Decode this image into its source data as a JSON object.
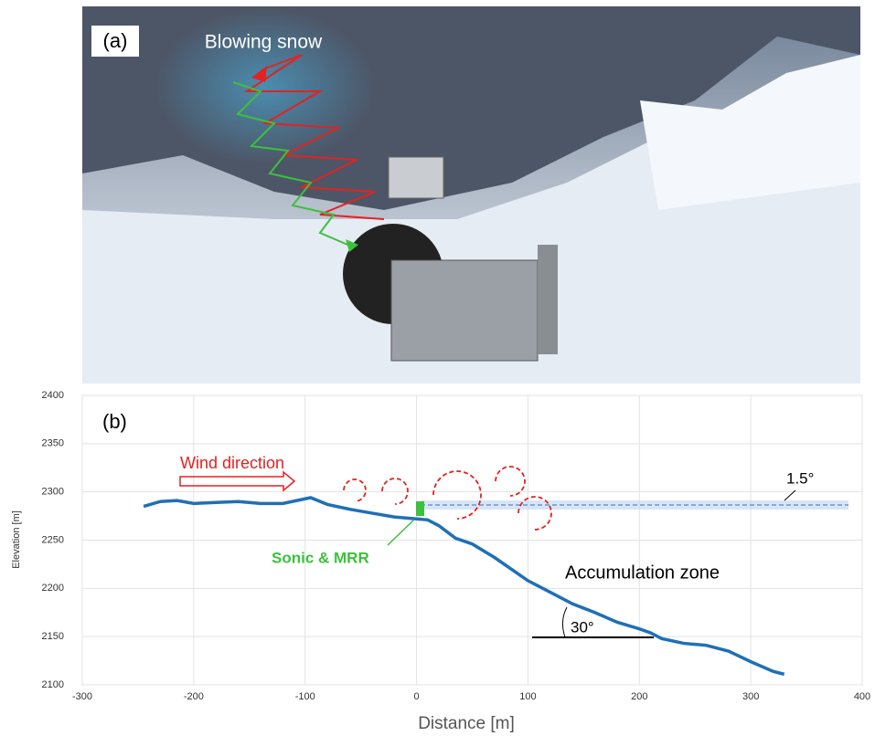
{
  "photo": {
    "panel_label": "(a)",
    "caption": "Blowing snow"
  },
  "chart_data": {
    "type": "line",
    "panel_label": "(b)",
    "xlabel": "Distance  [m]",
    "ylabel": "Elevation [m]",
    "xlim": [
      -300,
      400
    ],
    "ylim": [
      2100,
      2400
    ],
    "xticks": [
      -300,
      -200,
      -100,
      0,
      100,
      200,
      300,
      400
    ],
    "yticks": [
      2100,
      2150,
      2200,
      2250,
      2300,
      2350,
      2400
    ],
    "grid": true,
    "x": [
      -245,
      -230,
      -215,
      -200,
      -180,
      -160,
      -140,
      -120,
      -95,
      -80,
      -60,
      -40,
      -20,
      0,
      10,
      20,
      35,
      50,
      70,
      100,
      120,
      140,
      160,
      180,
      200,
      210,
      220,
      240,
      260,
      280,
      300,
      320,
      330
    ],
    "series": [
      {
        "color": "#1f6fb8",
        "values": [
          2285,
          2290,
          2291,
          2288,
          2289,
          2290,
          2288,
          2288,
          2294,
          2287,
          2282,
          2278,
          2274,
          2272,
          2271,
          2265,
          2252,
          2246,
          2232,
          2208,
          2196,
          2184,
          2175,
          2165,
          2158,
          2154,
          2148,
          2143,
          2141,
          2135,
          2124,
          2114,
          2111
        ]
      }
    ],
    "annotations": [
      "Wind direction",
      "Sonic & MRR",
      "Accumulation zone",
      "30°",
      "1.5°"
    ]
  }
}
